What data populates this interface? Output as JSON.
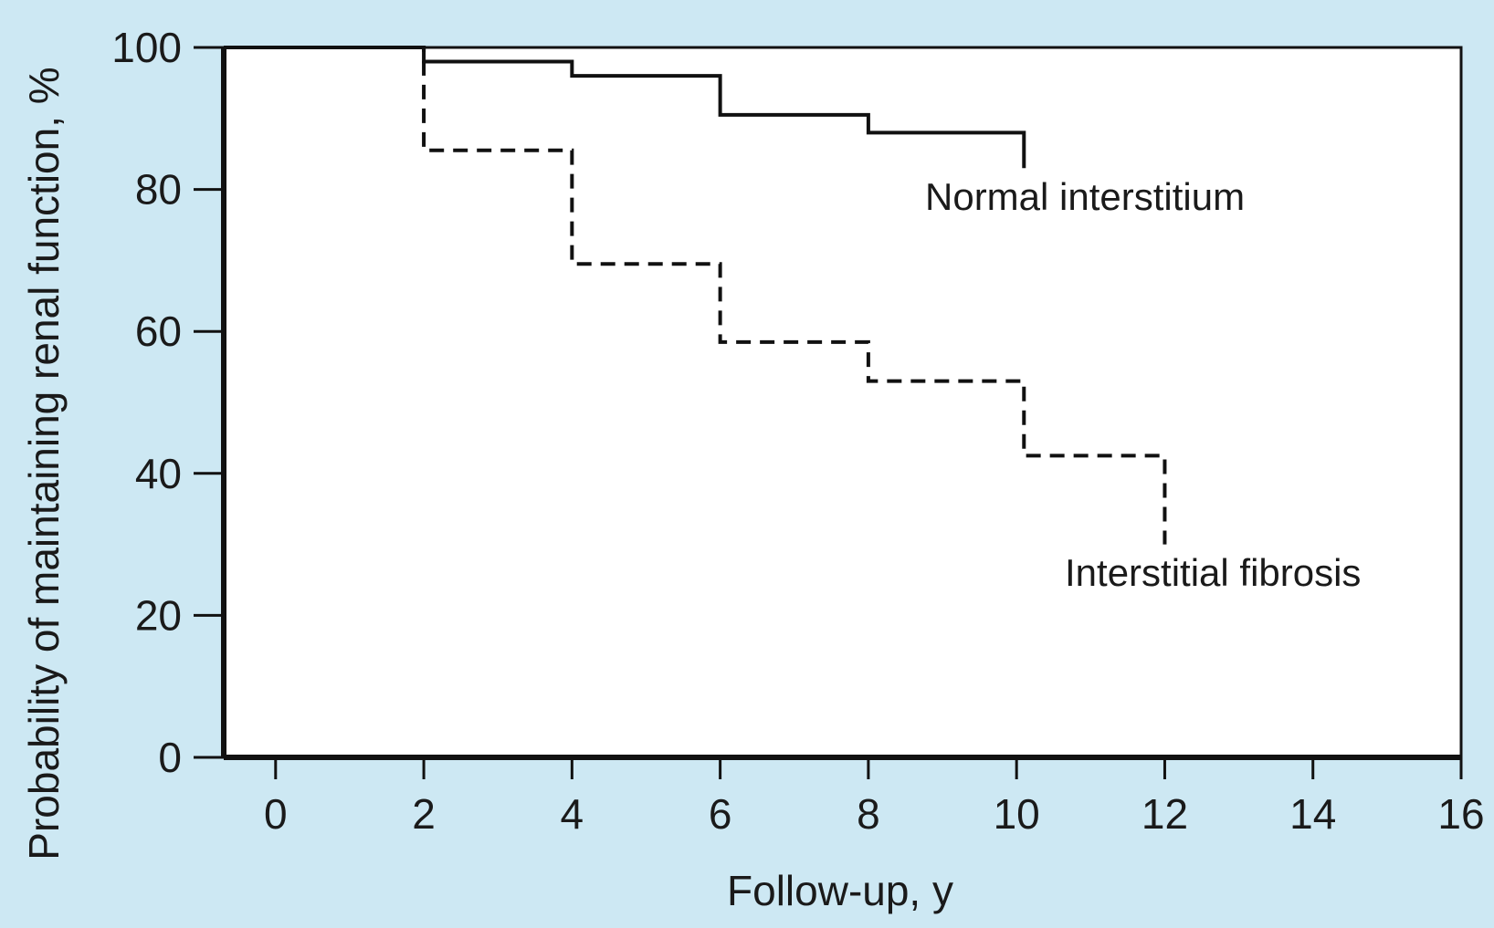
{
  "chart_data": {
    "type": "line",
    "step": true,
    "xlabel": "Follow-up, y",
    "ylabel": "Probability of maintaining renal function, %",
    "xlim": [
      -0.7,
      16
    ],
    "ylim": [
      0,
      100
    ],
    "x_ticks": [
      0,
      2,
      4,
      6,
      8,
      10,
      12,
      14,
      16
    ],
    "y_ticks": [
      0,
      20,
      40,
      60,
      80,
      100
    ],
    "x_tick_labels": [
      "0",
      "2",
      "4",
      "6",
      "8",
      "10",
      "12",
      "14",
      "16"
    ],
    "y_tick_labels": [
      "0",
      "20",
      "40",
      "60",
      "80",
      "100"
    ],
    "grid": false,
    "series": [
      {
        "name": "Normal interstitium",
        "style": "solid",
        "color": "#111111",
        "x": [
          2,
          4,
          6,
          8,
          10.1
        ],
        "y": [
          98,
          96,
          90.5,
          88,
          83
        ]
      },
      {
        "name": "Interstitial fibrosis",
        "style": "dashed",
        "color": "#111111",
        "x": [
          2,
          4,
          6,
          8,
          10.1,
          12
        ],
        "y": [
          85.5,
          69.5,
          58.5,
          53,
          42.5,
          30
        ]
      }
    ]
  },
  "colors": {
    "background": "#cde8f3",
    "plot_area": "#ffffff",
    "line": "#111111"
  }
}
